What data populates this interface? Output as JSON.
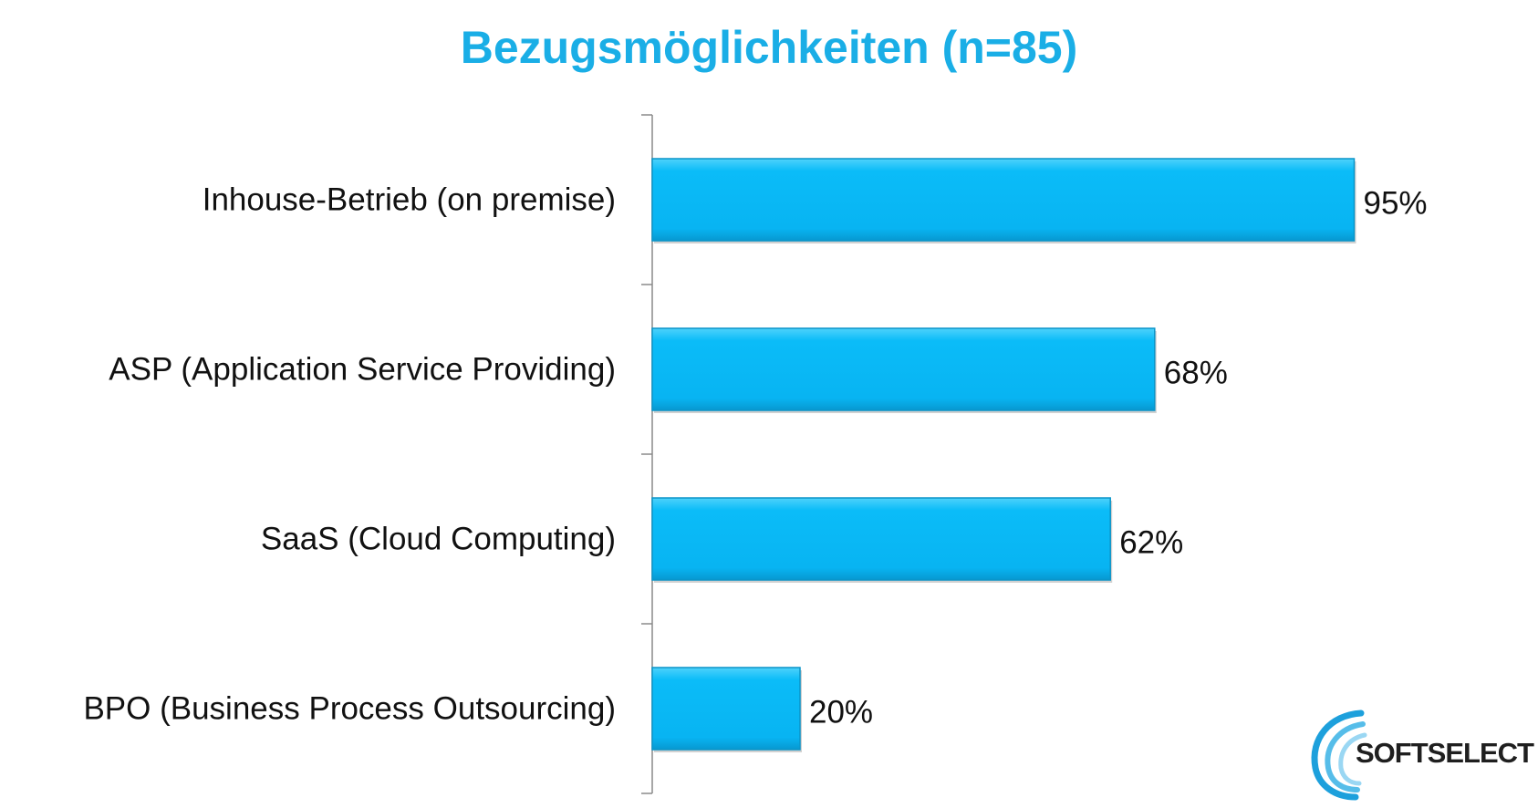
{
  "chart_data": {
    "type": "bar",
    "orientation": "horizontal",
    "title": "Bezugsmöglichkeiten (n=85)",
    "categories": [
      "Inhouse-Betrieb (on premise)",
      "ASP (Application Service Providing)",
      "SaaS (Cloud Computing)",
      "BPO (Business Process Outsourcing)"
    ],
    "values": [
      95,
      68,
      62,
      20
    ],
    "value_labels": [
      "95%",
      "68%",
      "62%",
      "20%"
    ],
    "xlim": [
      0,
      100
    ],
    "grid": false,
    "bar_color": "#09b8f7",
    "bar_edge_color": "#0a94c8",
    "title_color": "#1aaee6"
  },
  "logo": {
    "text": "SoftSelect",
    "mark": "swirl-logo-icon"
  }
}
